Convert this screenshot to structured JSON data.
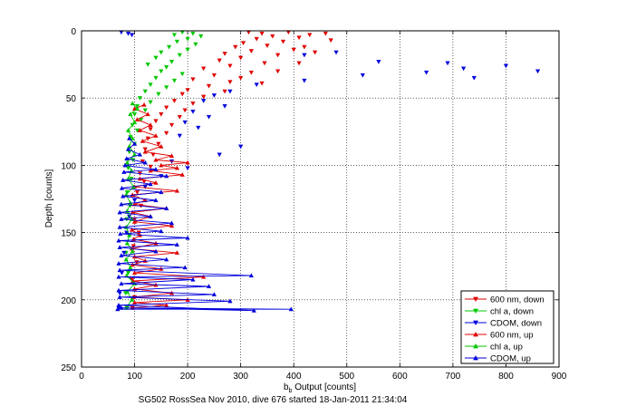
{
  "chart_data": {
    "type": "scatter",
    "xlabel_main": "b",
    "xlabel_sub": "b",
    "xlabel_rest": " Output [counts]",
    "ylabel": "Depth [counts]",
    "caption": "SG502 RossSea Nov 2010, dive 676 started 18-Jan-2011 21:34:04",
    "xlim": [
      0,
      900
    ],
    "ylim": [
      0,
      250
    ],
    "y_reversed": true,
    "grid": true,
    "grid_style": "dotted",
    "legend_placement": "bottom-right",
    "x_ticks": [
      "0",
      "100",
      "200",
      "300",
      "400",
      "500",
      "600",
      "700",
      "800",
      "900"
    ],
    "y_ticks": [
      "0",
      "50",
      "100",
      "150",
      "200",
      "250"
    ],
    "colors": {
      "red": "#e00000",
      "green": "#00c800",
      "blue": "#0000dd",
      "axes": "#000000",
      "grid": "#000000"
    },
    "series": [
      {
        "name": "600 nm, down",
        "color": "#e00000",
        "marker": "triangle-down",
        "line": false,
        "points": [
          [
            315,
            1
          ],
          [
            340,
            2
          ],
          [
            390,
            1
          ],
          [
            460,
            2
          ],
          [
            430,
            3
          ],
          [
            360,
            4
          ],
          [
            410,
            5
          ],
          [
            330,
            6
          ],
          [
            380,
            8
          ],
          [
            305,
            9
          ],
          [
            470,
            7
          ],
          [
            350,
            11
          ],
          [
            290,
            12
          ],
          [
            420,
            12
          ],
          [
            400,
            14
          ],
          [
            320,
            15
          ],
          [
            270,
            17
          ],
          [
            370,
            18
          ],
          [
            440,
            16
          ],
          [
            300,
            20
          ],
          [
            260,
            22
          ],
          [
            345,
            24
          ],
          [
            410,
            24
          ],
          [
            280,
            26
          ],
          [
            230,
            28
          ],
          [
            370,
            30
          ],
          [
            320,
            31
          ],
          [
            250,
            33
          ],
          [
            300,
            35
          ],
          [
            210,
            36
          ],
          [
            280,
            38
          ],
          [
            340,
            39
          ],
          [
            240,
            41
          ],
          [
            200,
            44
          ],
          [
            270,
            45
          ],
          [
            190,
            47
          ],
          [
            230,
            49
          ],
          [
            175,
            52
          ],
          [
            210,
            54
          ],
          [
            160,
            57
          ],
          [
            195,
            59
          ],
          [
            150,
            62
          ],
          [
            185,
            64
          ],
          [
            140,
            67
          ],
          [
            170,
            70
          ],
          [
            130,
            73
          ],
          [
            160,
            76
          ],
          [
            125,
            80
          ],
          [
            145,
            84
          ],
          [
            120,
            88
          ],
          [
            135,
            92
          ],
          [
            115,
            97
          ],
          [
            130,
            101
          ],
          [
            110,
            106
          ],
          [
            118,
            112
          ],
          [
            105,
            120
          ],
          [
            112,
            130
          ],
          [
            100,
            140
          ],
          [
            108,
            150
          ],
          [
            98,
            160
          ],
          [
            104,
            172
          ],
          [
            95,
            185
          ],
          [
            100,
            198
          ],
          [
            96,
            206
          ]
        ]
      },
      {
        "name": "chl a, down",
        "color": "#00c800",
        "marker": "triangle-down",
        "line": false,
        "points": [
          [
            190,
            1
          ],
          [
            210,
            2
          ],
          [
            175,
            3
          ],
          [
            225,
            4
          ],
          [
            200,
            6
          ],
          [
            180,
            8
          ],
          [
            215,
            10
          ],
          [
            165,
            12
          ],
          [
            200,
            14
          ],
          [
            150,
            16
          ],
          [
            185,
            18
          ],
          [
            140,
            20
          ],
          [
            170,
            23
          ],
          [
            125,
            25
          ],
          [
            160,
            27
          ],
          [
            150,
            30
          ],
          [
            190,
            32
          ],
          [
            140,
            35
          ],
          [
            175,
            37
          ],
          [
            130,
            40
          ],
          [
            160,
            42
          ],
          [
            120,
            45
          ],
          [
            145,
            47
          ],
          [
            110,
            50
          ],
          [
            130,
            53
          ],
          [
            105,
            56
          ],
          [
            120,
            59
          ],
          [
            100,
            62
          ],
          [
            112,
            66
          ],
          [
            96,
            70
          ],
          [
            105,
            74
          ],
          [
            92,
            79
          ],
          [
            100,
            84
          ],
          [
            90,
            90
          ],
          [
            97,
            96
          ],
          [
            88,
            102
          ],
          [
            94,
            110
          ],
          [
            86,
            120
          ],
          [
            92,
            130
          ],
          [
            85,
            140
          ],
          [
            90,
            152
          ],
          [
            84,
            165
          ],
          [
            88,
            180
          ],
          [
            83,
            195
          ],
          [
            86,
            206
          ]
        ]
      },
      {
        "name": "CDOM, down",
        "color": "#0000dd",
        "marker": "triangle-down",
        "line": false,
        "points": [
          [
            75,
            1
          ],
          [
            88,
            2
          ],
          [
            95,
            3
          ],
          [
            420,
            18
          ],
          [
            480,
            16
          ],
          [
            560,
            23
          ],
          [
            690,
            24
          ],
          [
            720,
            28
          ],
          [
            740,
            35
          ],
          [
            800,
            26
          ],
          [
            860,
            30
          ],
          [
            650,
            31
          ],
          [
            530,
            33
          ],
          [
            420,
            37
          ],
          [
            330,
            40
          ],
          [
            280,
            45
          ],
          [
            250,
            48
          ],
          [
            230,
            52
          ],
          [
            270,
            56
          ],
          [
            210,
            60
          ],
          [
            240,
            64
          ],
          [
            195,
            68
          ],
          [
            220,
            72
          ],
          [
            185,
            78
          ],
          [
            300,
            86
          ],
          [
            260,
            92
          ],
          [
            170,
            97
          ],
          [
            200,
            102
          ],
          [
            150,
            108
          ],
          [
            120,
            116
          ],
          [
            100,
            126
          ],
          [
            90,
            138
          ],
          [
            85,
            150
          ],
          [
            80,
            165
          ],
          [
            76,
            180
          ],
          [
            72,
            195
          ],
          [
            70,
            206
          ]
        ]
      },
      {
        "name": "600 nm, up",
        "color": "#e00000",
        "marker": "triangle-up",
        "line": true,
        "points": [
          [
            96,
            206
          ],
          [
            160,
            204
          ],
          [
            100,
            202
          ],
          [
            200,
            200
          ],
          [
            98,
            198
          ],
          [
            170,
            195
          ],
          [
            100,
            192
          ],
          [
            140,
            189
          ],
          [
            97,
            186
          ],
          [
            230,
            183
          ],
          [
            100,
            180
          ],
          [
            150,
            177
          ],
          [
            96,
            174
          ],
          [
            120,
            171
          ],
          [
            100,
            168
          ],
          [
            180,
            165
          ],
          [
            95,
            162
          ],
          [
            140,
            158
          ],
          [
            98,
            155
          ],
          [
            110,
            152
          ],
          [
            95,
            148
          ],
          [
            170,
            145
          ],
          [
            100,
            142
          ],
          [
            130,
            138
          ],
          [
            96,
            135
          ],
          [
            160,
            132
          ],
          [
            100,
            129
          ],
          [
            120,
            126
          ],
          [
            96,
            122
          ],
          [
            180,
            119
          ],
          [
            100,
            116
          ],
          [
            140,
            113
          ],
          [
            110,
            110
          ],
          [
            190,
            107
          ],
          [
            130,
            104
          ],
          [
            180,
            102
          ],
          [
            150,
            100
          ],
          [
            200,
            98
          ],
          [
            140,
            96
          ],
          [
            170,
            93
          ],
          [
            120,
            90
          ],
          [
            150,
            86
          ],
          [
            115,
            82
          ],
          [
            140,
            78
          ],
          [
            110,
            74
          ],
          [
            130,
            70
          ],
          [
            105,
            66
          ],
          [
            125,
            62
          ],
          [
            100,
            58
          ],
          [
            118,
            55
          ]
        ]
      },
      {
        "name": "chl a, up",
        "color": "#00c800",
        "marker": "triangle-up",
        "line": true,
        "points": [
          [
            84,
            206
          ],
          [
            95,
            200
          ],
          [
            86,
            194
          ],
          [
            100,
            188
          ],
          [
            85,
            182
          ],
          [
            92,
            176
          ],
          [
            84,
            170
          ],
          [
            96,
            164
          ],
          [
            86,
            158
          ],
          [
            90,
            152
          ],
          [
            84,
            146
          ],
          [
            95,
            140
          ],
          [
            86,
            134
          ],
          [
            92,
            128
          ],
          [
            84,
            122
          ],
          [
            98,
            116
          ],
          [
            88,
            110
          ],
          [
            94,
            104
          ],
          [
            86,
            98
          ],
          [
            100,
            92
          ],
          [
            90,
            86
          ],
          [
            96,
            80
          ],
          [
            88,
            74
          ],
          [
            100,
            68
          ],
          [
            92,
            62
          ],
          [
            105,
            58
          ],
          [
            96,
            54
          ]
        ]
      },
      {
        "name": "CDOM, up",
        "color": "#0000dd",
        "marker": "triangle-up",
        "line": true,
        "points": [
          [
            68,
            207
          ],
          [
            395,
            207
          ],
          [
            75,
            206
          ],
          [
            325,
            208
          ],
          [
            70,
            204
          ],
          [
            280,
            201
          ],
          [
            72,
            198
          ],
          [
            250,
            196
          ],
          [
            70,
            193
          ],
          [
            240,
            190
          ],
          [
            75,
            188
          ],
          [
            210,
            185
          ],
          [
            70,
            183
          ],
          [
            320,
            182
          ],
          [
            72,
            178
          ],
          [
            195,
            176
          ],
          [
            70,
            173
          ],
          [
            160,
            170
          ],
          [
            75,
            167
          ],
          [
            140,
            164
          ],
          [
            72,
            161
          ],
          [
            180,
            159
          ],
          [
            70,
            156
          ],
          [
            200,
            154
          ],
          [
            73,
            151
          ],
          [
            150,
            149
          ],
          [
            72,
            146
          ],
          [
            170,
            143
          ],
          [
            75,
            140
          ],
          [
            130,
            138
          ],
          [
            72,
            135
          ],
          [
            160,
            132
          ],
          [
            75,
            129
          ],
          [
            140,
            126
          ],
          [
            78,
            123
          ],
          [
            150,
            120
          ],
          [
            76,
            117
          ],
          [
            130,
            114
          ],
          [
            78,
            111
          ],
          [
            160,
            108
          ],
          [
            80,
            105
          ],
          [
            140,
            103
          ],
          [
            82,
            100
          ],
          [
            120,
            98
          ],
          [
            85,
            95
          ],
          [
            110,
            92
          ],
          [
            88,
            88
          ],
          [
            100,
            84
          ],
          [
            90,
            80
          ]
        ]
      }
    ]
  }
}
